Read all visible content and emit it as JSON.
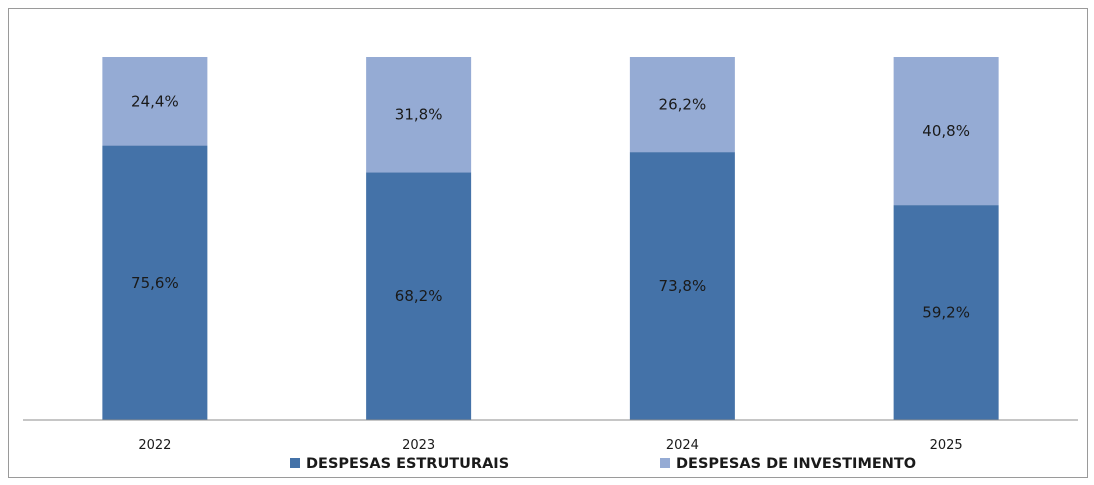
{
  "chart_data": {
    "type": "bar",
    "stacked": true,
    "categories": [
      "2022",
      "2023",
      "2024",
      "2025"
    ],
    "series": [
      {
        "name": "DESPESAS ESTRUTURAIS",
        "values": [
          75.6,
          68.2,
          73.8,
          59.2
        ],
        "labels": [
          "75,6%",
          "68,2%",
          "73,8%",
          "59,2%"
        ],
        "color": "#4472a8"
      },
      {
        "name": "DESPESAS DE INVESTIMENTO",
        "values": [
          24.4,
          31.8,
          26.2,
          40.8
        ],
        "labels": [
          "24,4%",
          "31,8%",
          "26,2%",
          "40,8%"
        ],
        "color": "#95abd4"
      }
    ],
    "ylim": [
      0,
      100
    ],
    "grid": false,
    "legend_position": "bottom",
    "title": "",
    "xlabel": "",
    "ylabel": ""
  }
}
